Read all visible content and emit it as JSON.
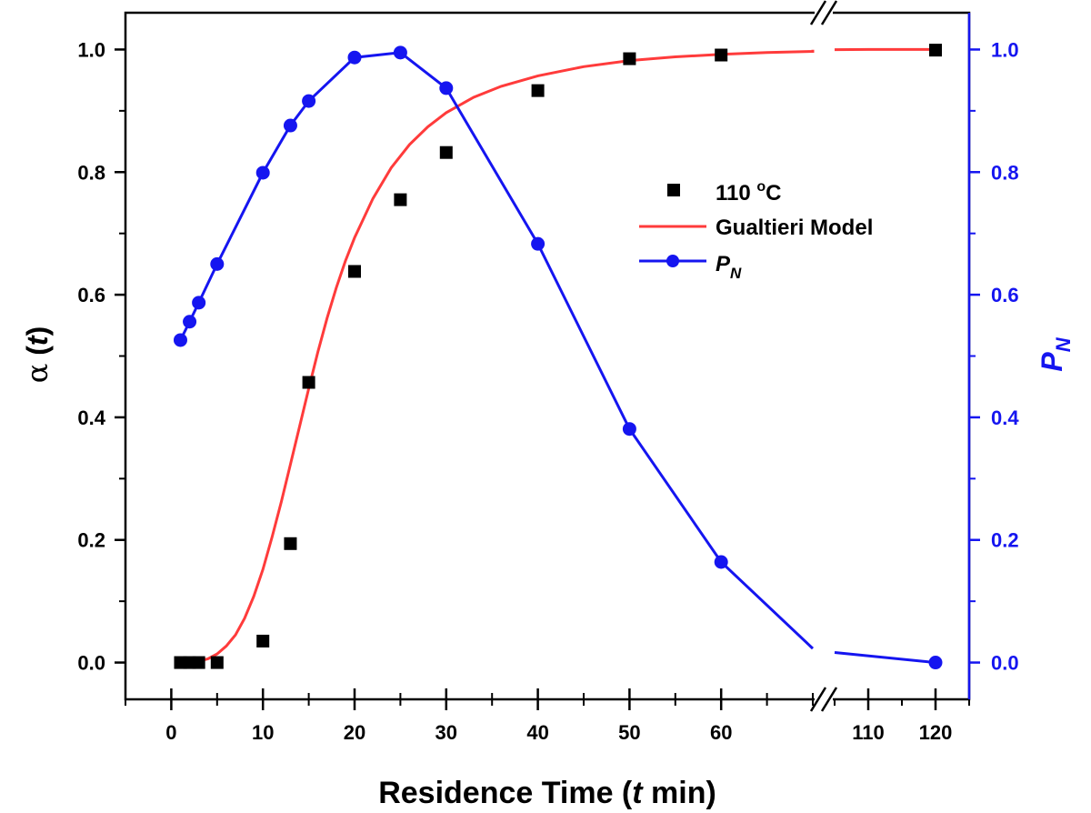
{
  "chart_data": {
    "type": "line",
    "xlabel": {
      "main": "Residence Time (",
      "italic": "t",
      "unit": " min)"
    },
    "ylabel_left": {
      "symbol": "α",
      "open": " (",
      "italic": "t",
      "close": ")"
    },
    "ylabel_right": {
      "main": "P",
      "sub": "N"
    },
    "x_axis_broken": true,
    "x_segments": [
      [
        -5,
        70
      ],
      [
        105,
        125
      ]
    ],
    "x_ticks": [
      0,
      10,
      20,
      30,
      40,
      50,
      60,
      110,
      120
    ],
    "x_tick_labels": [
      "0",
      "10",
      "20",
      "30",
      "40",
      "50",
      "60",
      "110",
      "120"
    ],
    "ylim_left": [
      -0.06,
      1.06
    ],
    "ylim_right": [
      -0.06,
      1.06
    ],
    "y_ticks": [
      0.0,
      0.2,
      0.4,
      0.6,
      0.8,
      1.0
    ],
    "y_tick_labels": [
      "0.0",
      "0.2",
      "0.4",
      "0.6",
      "0.8",
      "1.0"
    ],
    "grid": false,
    "legend_position": "upper-right",
    "series": [
      {
        "name": "110 °C",
        "name_main": "110 ",
        "name_sup": "o",
        "name_tail": "C",
        "kind": "scatter",
        "axis": "left",
        "color": "#000000",
        "x": [
          1,
          2,
          3,
          5,
          10,
          13,
          15,
          20,
          25,
          30,
          40,
          50,
          60,
          120
        ],
        "y": [
          0.0,
          0.0,
          0.0,
          0.0,
          0.035,
          0.194,
          0.457,
          0.638,
          0.755,
          0.832,
          0.933,
          0.985,
          0.991,
          0.999
        ]
      },
      {
        "name": "Gualtieri Model",
        "kind": "curve",
        "axis": "left",
        "color": "#ff3b3b",
        "x": [
          1,
          2,
          3,
          4,
          5,
          6,
          7,
          8,
          9,
          10,
          11,
          12,
          13,
          14,
          15,
          16,
          17,
          18,
          19,
          20,
          22,
          24,
          26,
          28,
          30,
          33,
          36,
          40,
          45,
          50,
          55,
          60,
          65,
          70,
          110,
          115,
          120
        ],
        "y": [
          0.0,
          0.0,
          0.002,
          0.006,
          0.014,
          0.027,
          0.045,
          0.072,
          0.108,
          0.152,
          0.205,
          0.262,
          0.323,
          0.385,
          0.447,
          0.507,
          0.562,
          0.611,
          0.655,
          0.693,
          0.757,
          0.807,
          0.845,
          0.874,
          0.897,
          0.922,
          0.94,
          0.957,
          0.972,
          0.982,
          0.988,
          0.992,
          0.995,
          0.997,
          1.0,
          1.0,
          1.0
        ]
      },
      {
        "name": "P",
        "name_sub": "N",
        "kind": "line-marker",
        "axis": "right",
        "color": "#1515f0",
        "x": [
          1,
          2,
          3,
          5,
          10,
          13,
          15,
          20,
          25,
          30,
          40,
          50,
          60,
          120
        ],
        "y": [
          0.526,
          0.556,
          0.587,
          0.65,
          0.799,
          0.876,
          0.916,
          0.987,
          0.995,
          0.937,
          0.683,
          0.381,
          0.164,
          0.0
        ]
      }
    ]
  }
}
